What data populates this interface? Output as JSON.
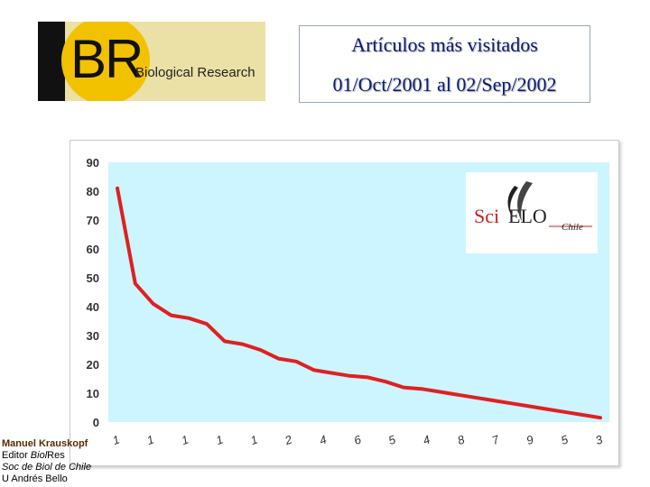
{
  "logo": {
    "letters": "BR",
    "name": "Biological Research"
  },
  "header": {
    "title": "Artículos más visitados",
    "date_range": "01/Oct/2001  al  02/Sep/2002"
  },
  "scielo_logo": {
    "prefix": "Sci",
    "middle": "ELO",
    "suffix": "Chile"
  },
  "author": {
    "name": "Manuel Krauskopf",
    "role_prefix": "Editor ",
    "role_journal": "Biol",
    "role_suffix": "Res",
    "society": "Soc de Biol de Chile",
    "university": "U Andrés Bello"
  },
  "chart_data": {
    "type": "line",
    "x": [
      1,
      2,
      3,
      4,
      5,
      6,
      7,
      8,
      9,
      10,
      11,
      12,
      13,
      14,
      15,
      16,
      17,
      18,
      19,
      20,
      21,
      22,
      23,
      24,
      25,
      26,
      27,
      28
    ],
    "tick_labels": [
      "1",
      "1",
      "1",
      "1",
      "1",
      "2",
      "4",
      "6",
      "5",
      "4",
      "8",
      "7",
      "9",
      "5",
      "3"
    ],
    "series": [
      {
        "values": [
          81,
          48,
          41,
          37,
          36,
          34,
          28,
          27,
          25,
          22,
          21,
          18,
          17,
          16,
          15.5,
          14,
          12,
          11.5,
          10.5,
          9.5,
          8.5,
          7.5,
          6.5,
          5.5,
          4.5,
          3.5,
          2.5,
          1.5
        ],
        "color": "#e02020"
      }
    ],
    "ylim": [
      0,
      90
    ],
    "yticks": [
      0,
      10,
      20,
      30,
      40,
      50,
      60,
      70,
      80,
      90
    ],
    "grid": false,
    "plot_bg": "#ccf5ff"
  }
}
